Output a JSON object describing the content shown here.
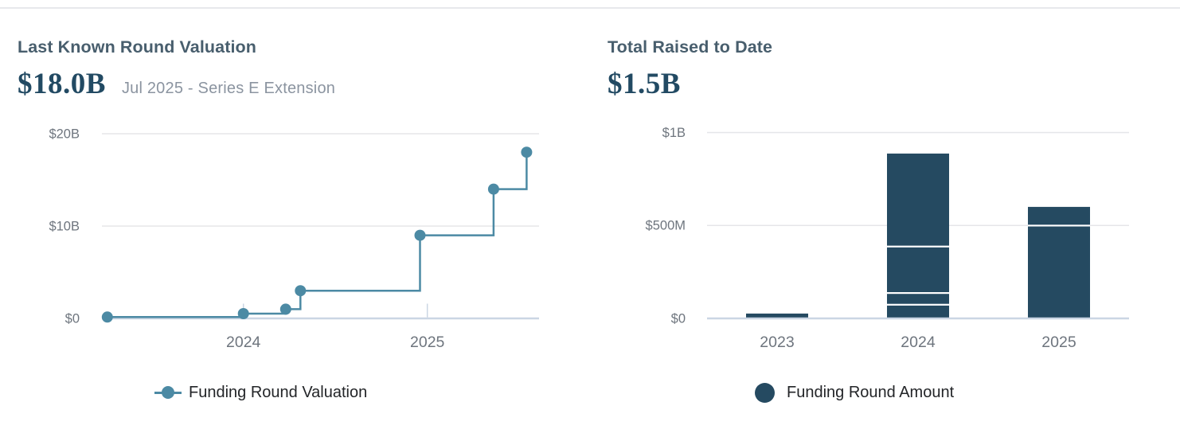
{
  "valuation_card": {
    "title": "Last Known Round Valuation",
    "headline_value": "$18.0B",
    "headline_caption": "Jul 2025 - Series E Extension",
    "legend_label": "Funding Round Valuation"
  },
  "raised_card": {
    "title": "Total Raised to Date",
    "headline_value": "$1.5B",
    "legend_label": "Funding Round Amount"
  },
  "colors": {
    "line_teal": "#4C8AA4",
    "bar_navy": "#254A61",
    "gridline": "#E5E6E9",
    "axis_line": "#CBD6E4",
    "axis_label": "#6E757E",
    "title_slate": "#485E6D",
    "number_navy": "#224A63",
    "caption_gray": "#8B94A0"
  },
  "chart_data": [
    {
      "type": "line",
      "line_style": "step-after",
      "title": "Last Known Round Valuation",
      "series": [
        {
          "name": "Funding Round Valuation"
        }
      ],
      "unit": "USD billions",
      "ylim": [
        0,
        20
      ],
      "y_ticks": [
        {
          "label": "$0",
          "value": 0
        },
        {
          "label": "$10B",
          "value": 10
        },
        {
          "label": "$20B",
          "value": 20
        }
      ],
      "x_ticks": [
        {
          "label": "2024",
          "t": 2024
        },
        {
          "label": "2025",
          "t": 2025
        }
      ],
      "points": [
        {
          "date": "Apr 2023",
          "t": 2023.26,
          "valuation_b": 0.15
        },
        {
          "date": "Jan 2024",
          "t": 2024.0,
          "valuation_b": 0.52
        },
        {
          "date": "Mar 2024",
          "t": 2024.23,
          "valuation_b": 1.0
        },
        {
          "date": "Apr 2024",
          "t": 2024.31,
          "valuation_b": 3.0
        },
        {
          "date": "Dec 2024",
          "t": 2024.96,
          "valuation_b": 9.0
        },
        {
          "date": "May 2025",
          "t": 2025.36,
          "valuation_b": 14.0
        },
        {
          "date": "Jul 2025",
          "t": 2025.54,
          "valuation_b": 18.0
        }
      ],
      "legend": {
        "label": "Funding Round Valuation",
        "position": "bottom"
      }
    },
    {
      "type": "bar",
      "bar_style": "stacked",
      "title": "Total Raised to Date",
      "series": [
        {
          "name": "Funding Round Amount"
        }
      ],
      "unit": "USD millions",
      "ylim": [
        0,
        1000
      ],
      "y_ticks": [
        {
          "label": "$0",
          "value": 0
        },
        {
          "label": "$500M",
          "value": 500
        },
        {
          "label": "$1B",
          "value": 1000
        }
      ],
      "categories": [
        "2023",
        "2024",
        "2025"
      ],
      "stacks_m": [
        [
          26
        ],
        [
          74,
          63,
          250,
          500
        ],
        [
          500,
          100
        ]
      ],
      "totals_m": [
        26,
        887,
        600
      ],
      "legend": {
        "label": "Funding Round Amount",
        "position": "bottom"
      }
    }
  ]
}
